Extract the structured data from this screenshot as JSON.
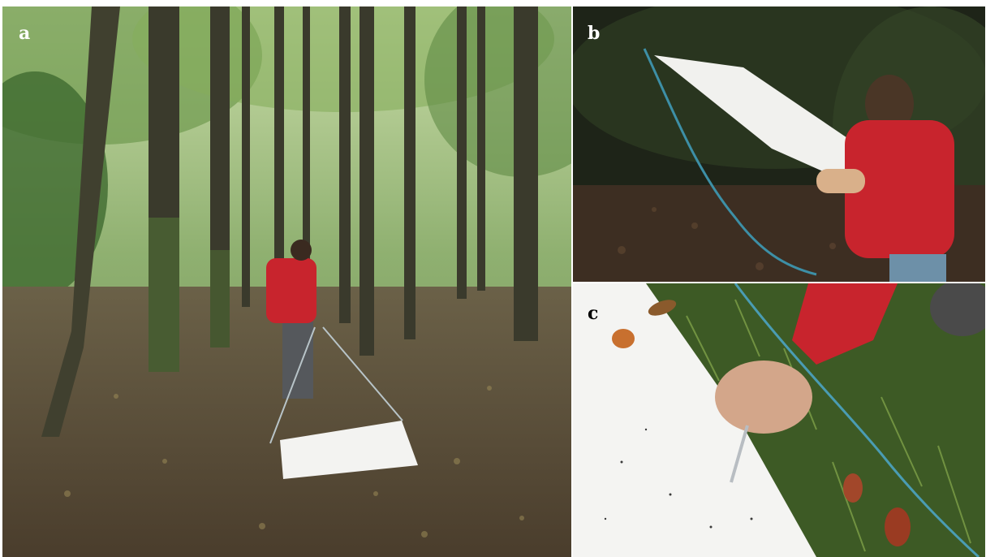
{
  "panels": [
    {
      "label": "a",
      "label_color": "#ffffff"
    },
    {
      "label": "b",
      "label_color": "#ffffff"
    },
    {
      "label": "c",
      "label_color": "#000000"
    }
  ]
}
